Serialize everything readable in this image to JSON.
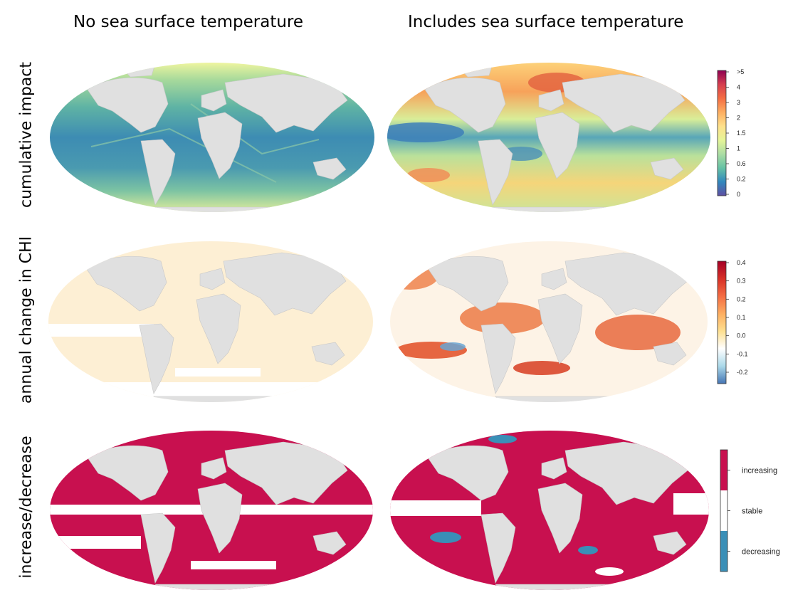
{
  "columns": {
    "left": "No sea surface temperature",
    "right": "Includes sea surface temperature"
  },
  "rows": {
    "impact": "cumulative impact",
    "annual": "annual change in CHI",
    "trend": "increase/decrease"
  },
  "legends": {
    "impact": {
      "labels": [
        ">5",
        "4",
        "3",
        "2",
        "1.5",
        "1",
        "0.6",
        "0.2",
        "0"
      ],
      "colors": [
        "#8e0152",
        "#d53e4f",
        "#f46d43",
        "#fdae61",
        "#fee08b",
        "#e6f598",
        "#abdda4",
        "#66c2a5",
        "#3288bd",
        "#5e4fa2"
      ]
    },
    "annual": {
      "labels": [
        "0.4",
        "0.3",
        "0.2",
        "0.1",
        "0.0",
        "-0.1",
        "-0.2"
      ],
      "colors": [
        "#a50026",
        "#d73027",
        "#f46d43",
        "#fdae61",
        "#fee090",
        "#ffffff",
        "#abd9e9",
        "#4575b4"
      ]
    },
    "trend": {
      "labels": [
        "increasing",
        "stable",
        "decreasing"
      ],
      "colors": [
        "#c8104f",
        "#ffffff",
        "#3a8fb7"
      ]
    }
  },
  "colors": {
    "land": "#e0e0e0",
    "increasing": "#c8104f",
    "decreasing": "#3a8fb7"
  }
}
